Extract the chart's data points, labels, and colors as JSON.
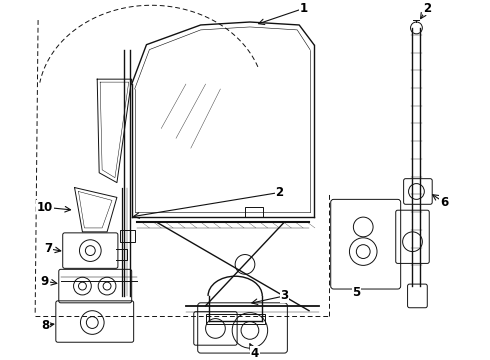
{
  "bg_color": "#ffffff",
  "line_color": "#111111",
  "fig_width": 4.9,
  "fig_height": 3.6,
  "dpi": 100
}
